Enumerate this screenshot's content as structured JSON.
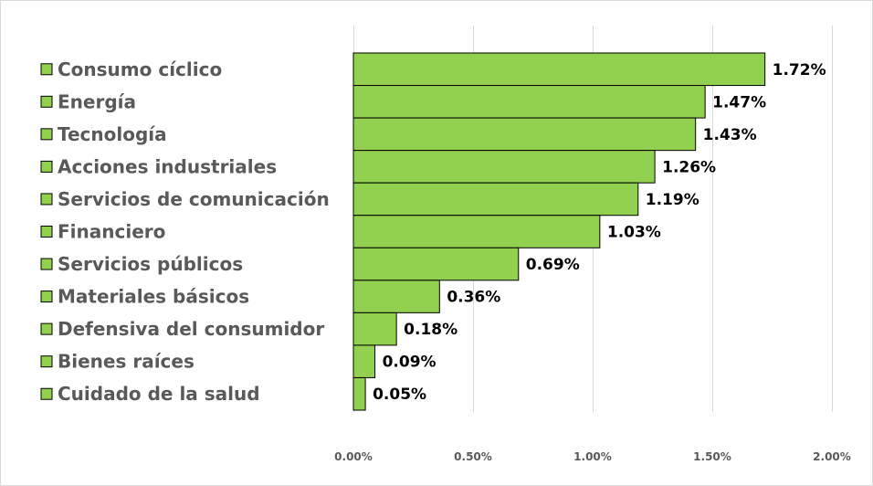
{
  "chart_data": {
    "type": "bar",
    "orientation": "horizontal",
    "title": "",
    "xlabel": "",
    "ylabel": "",
    "categories": [
      "Consumo cíclico",
      "Energía",
      "Tecnología",
      "Acciones industriales",
      "Servicios de comunicación",
      "Financiero",
      "Servicios públicos",
      "Materiales básicos",
      "Defensiva del consumidor",
      "Bienes raíces",
      "Cuidado de la salud"
    ],
    "values": [
      1.72,
      1.47,
      1.43,
      1.26,
      1.19,
      1.03,
      0.69,
      0.36,
      0.18,
      0.09,
      0.05
    ],
    "value_labels": [
      "1.72%",
      "1.47%",
      "1.43%",
      "1.26%",
      "1.19%",
      "1.03%",
      "0.69%",
      "0.36%",
      "0.18%",
      "0.09%",
      "0.05%"
    ],
    "xlim": [
      0,
      2
    ],
    "x_ticks": [
      0,
      0.5,
      1,
      1.5,
      2
    ],
    "x_tick_labels": [
      "0.00%",
      "0.50%",
      "1.00%",
      "1.50%",
      "2.00%"
    ],
    "grid": "vertical",
    "legend": "left",
    "colors": {
      "bar": "#92d050",
      "bar_border": "#000000",
      "gridline": "#d9d9d9",
      "category_text": "#595959",
      "value_text": "#000000"
    }
  }
}
